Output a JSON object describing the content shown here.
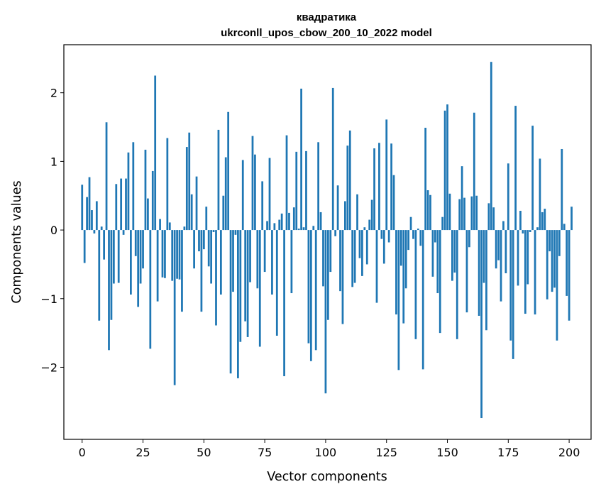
{
  "chart_data": {
    "type": "bar",
    "title": "квадратика",
    "subtitle": "ukrconll_upos_cbow_200_10_2022 model",
    "xlabel": "Vector components",
    "ylabel": "Components values",
    "xlim": [
      -7.5,
      209
    ],
    "ylim": [
      -3.05,
      2.7
    ],
    "xticks": [
      0,
      25,
      50,
      75,
      100,
      125,
      150,
      175,
      200
    ],
    "yticks": [
      -2,
      -1,
      0,
      1,
      2
    ],
    "grid": false,
    "bar_color": "#1f77b4",
    "values": [
      0.66,
      -0.48,
      0.48,
      0.77,
      0.29,
      -0.05,
      0.42,
      -1.32,
      0.05,
      -0.43,
      1.57,
      -1.75,
      -1.31,
      -0.78,
      0.67,
      -0.77,
      0.75,
      -0.07,
      0.75,
      1.13,
      -0.94,
      1.28,
      -0.38,
      -1.12,
      -0.78,
      -0.56,
      1.17,
      0.46,
      -1.73,
      0.86,
      2.25,
      -1.04,
      0.16,
      -0.69,
      -0.7,
      1.34,
      0.11,
      -0.74,
      -2.26,
      -0.71,
      -0.72,
      -1.19,
      0.05,
      1.21,
      1.42,
      0.52,
      -0.56,
      0.78,
      -0.31,
      -1.19,
      -0.28,
      0.34,
      -0.53,
      -0.78,
      -0.03,
      -1.39,
      1.46,
      -0.94,
      0.5,
      1.06,
      1.72,
      -2.09,
      -0.9,
      -0.07,
      -2.16,
      -1.63,
      1.02,
      -1.33,
      -1.56,
      -0.76,
      1.37,
      1.1,
      -0.85,
      -1.7,
      0.71,
      -0.61,
      0.13,
      1.05,
      -0.94,
      0.1,
      -1.54,
      0.15,
      0.24,
      -2.13,
      1.38,
      0.25,
      -0.92,
      0.33,
      1.14,
      0.02,
      2.06,
      0.04,
      1.15,
      -1.65,
      -1.91,
      0.06,
      -1.75,
      1.28,
      0.26,
      -0.82,
      -2.38,
      -1.31,
      -0.61,
      2.07,
      -0.09,
      0.65,
      -0.89,
      -1.37,
      0.42,
      1.23,
      1.45,
      -0.83,
      -0.77,
      0.52,
      -0.41,
      -0.67,
      0.04,
      -0.5,
      0.15,
      0.44,
      1.19,
      -1.06,
      1.27,
      -0.13,
      -0.49,
      1.61,
      -0.18,
      1.26,
      0.8,
      -1.23,
      -2.04,
      -0.52,
      -1.36,
      -0.85,
      -0.29,
      0.19,
      -0.13,
      -1.59,
      0.02,
      -0.23,
      -2.03,
      1.49,
      0.58,
      0.51,
      -0.68,
      -0.18,
      -0.92,
      -1.5,
      0.19,
      1.74,
      1.83,
      0.53,
      -0.74,
      -0.62,
      -1.59,
      0.45,
      0.93,
      0.47,
      -1.2,
      -0.25,
      0.49,
      1.71,
      0.5,
      -1.25,
      -2.74,
      -0.77,
      -1.46,
      0.39,
      2.45,
      0.33,
      -0.56,
      -0.44,
      -1.04,
      0.13,
      -0.63,
      0.97,
      -1.61,
      -1.88,
      1.81,
      -0.81,
      0.28,
      -0.05,
      -1.22,
      -0.79,
      -0.03,
      1.52,
      -1.23,
      0.04,
      1.04,
      0.26,
      0.31,
      -1.01,
      -0.31,
      -0.9,
      -0.84,
      -1.61,
      -0.38,
      1.18,
      0.09,
      -0.96,
      -1.32,
      0.34
    ]
  }
}
